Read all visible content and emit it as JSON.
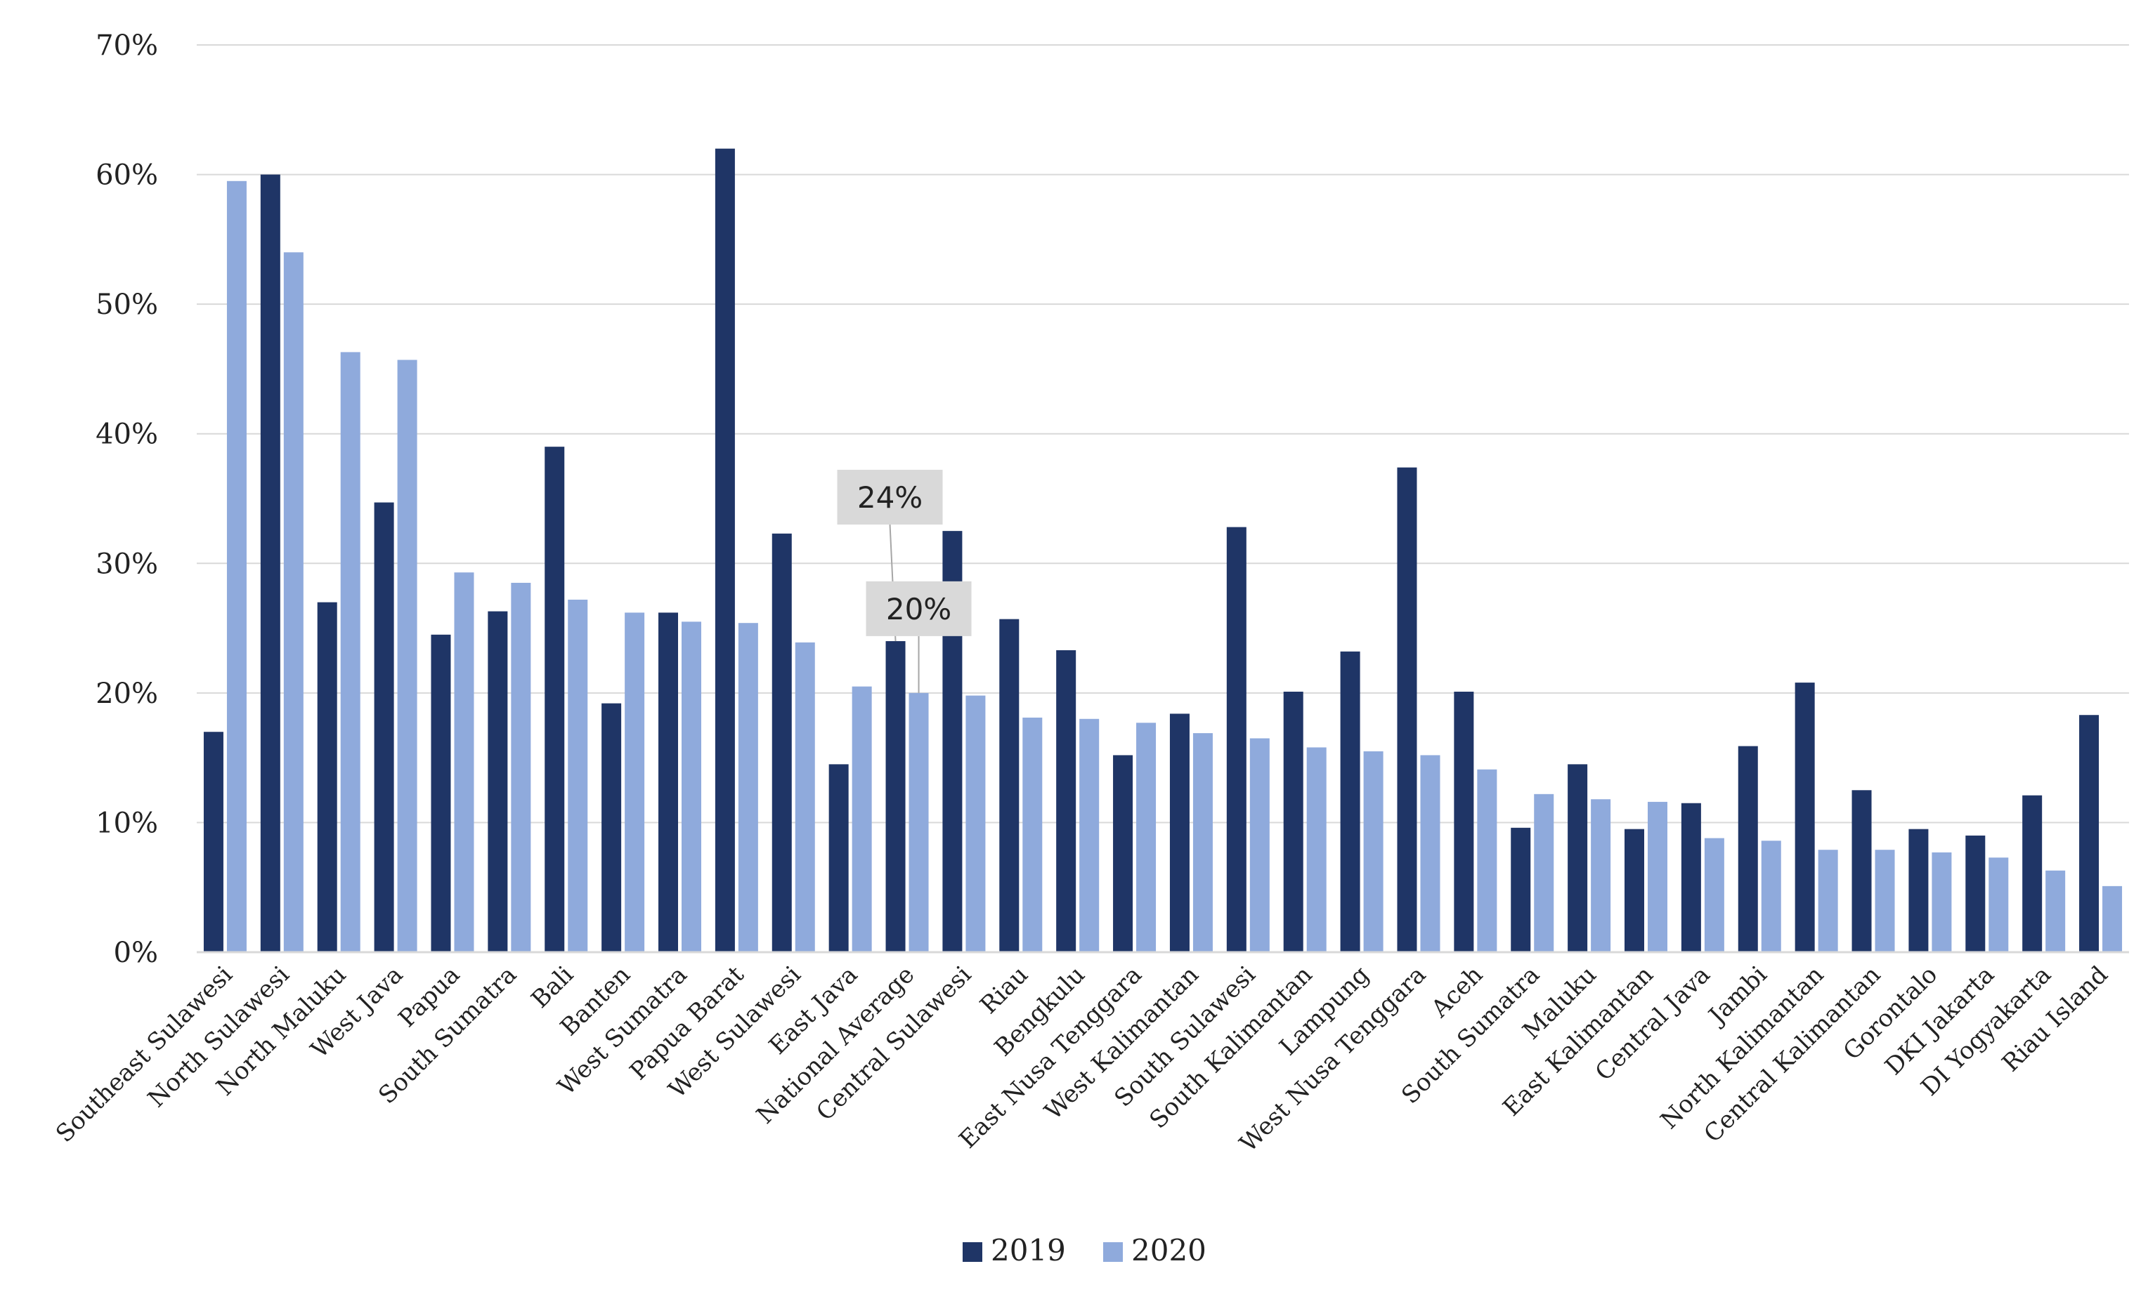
{
  "chart_data": {
    "type": "bar",
    "title": "",
    "xlabel": "",
    "ylabel": "",
    "ylim": [
      0,
      0.7
    ],
    "ytick_values": [
      0,
      0.1,
      0.2,
      0.3,
      0.4,
      0.5,
      0.6,
      0.7
    ],
    "ytick_labels": [
      "0%",
      "10%",
      "20%",
      "30%",
      "40%",
      "50%",
      "60%",
      "70%"
    ],
    "grid": true,
    "legend_position": "bottom-center",
    "categories": [
      "Southeast Sulawesi",
      "North Sulawesi",
      "North Maluku",
      "West Java",
      "Papua",
      "South Sumatra",
      "Bali",
      "Banten",
      "West Sumatra",
      "Papua Barat",
      "West Sulawesi",
      "East Java",
      "National Average",
      "Central Sulawesi",
      "Riau",
      "Bengkulu",
      "East Nusa Tenggara",
      "West Kalimantan",
      "South Sulawesi",
      "South Kalimantan",
      "Lampung",
      "West Nusa Tenggara",
      "Aceh",
      "South Sumatra",
      "Maluku",
      "East Kalimantan",
      "Central Java",
      "Jambi",
      "North Kalimantan",
      "Central Kalimantan",
      "Gorontalo",
      "DKI Jakarta",
      "DI Yogyakarta",
      "Riau Island"
    ],
    "series": [
      {
        "name": "2019",
        "color": "#1f3566",
        "values": [
          0.17,
          0.6,
          0.27,
          0.347,
          0.245,
          0.263,
          0.39,
          0.192,
          0.262,
          0.62,
          0.323,
          0.145,
          0.24,
          0.325,
          0.257,
          0.233,
          0.152,
          0.184,
          0.328,
          0.201,
          0.232,
          0.374,
          0.201,
          0.096,
          0.145,
          0.095,
          0.115,
          0.159,
          0.208,
          0.125,
          0.095,
          0.09,
          0.121,
          0.183
        ]
      },
      {
        "name": "2020",
        "color": "#8faadc",
        "values": [
          0.595,
          0.54,
          0.463,
          0.457,
          0.293,
          0.285,
          0.272,
          0.262,
          0.255,
          0.254,
          0.239,
          0.205,
          0.2,
          0.198,
          0.181,
          0.18,
          0.177,
          0.169,
          0.165,
          0.158,
          0.155,
          0.152,
          0.141,
          0.122,
          0.118,
          0.116,
          0.088,
          0.086,
          0.079,
          0.079,
          0.077,
          0.073,
          0.063,
          0.051
        ]
      }
    ],
    "annotations": [
      {
        "text": "24%",
        "category": "National Average",
        "series": "2019"
      },
      {
        "text": "20%",
        "category": "National Average",
        "series": "2020"
      }
    ]
  }
}
